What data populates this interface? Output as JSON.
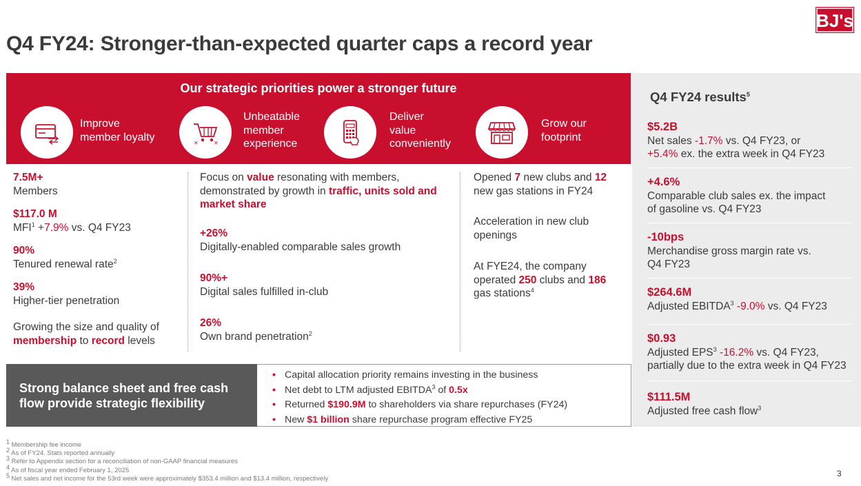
{
  "brand": {
    "logo_text": "BJ's",
    "accent": "#c8102e",
    "dark_panel": "#595959",
    "side_panel": "#ececec"
  },
  "title": "Q4 FY24: Stronger-than-expected quarter caps a record year",
  "banner": {
    "title": "Our strategic priorities power a stronger future",
    "priorities": [
      {
        "icon": "membership-card-icon",
        "line1": "Improve",
        "line2": "member loyalty",
        "line3": ""
      },
      {
        "icon": "shopping-cart-icon",
        "line1": "Unbeatable",
        "line2": "member",
        "line3": "experience"
      },
      {
        "icon": "mobile-app-icon",
        "line1": "Deliver",
        "line2": "value",
        "line3": "conveniently"
      },
      {
        "icon": "storefront-icon",
        "line1": "Grow our",
        "line2": "footprint",
        "line3": ""
      }
    ]
  },
  "col1": {
    "members_value": "7.5M+",
    "members_label": "Members",
    "mfi_value": "$117.0 M",
    "mfi_label": "MFI",
    "mfi_sup": "1",
    "mfi_change": "+7.9%",
    "mfi_suffix": " vs. Q4 FY23",
    "renewal_value": "90%",
    "renewal_label": "Tenured renewal rate",
    "renewal_sup": "2",
    "higher_tier_value": "39%",
    "higher_tier_label": "Higher-tier penetration",
    "growing_line1": "Growing the size and quality of",
    "growing_kw1": "membership",
    "growing_mid": " to ",
    "growing_kw2": "record",
    "growing_end": " levels"
  },
  "col2": {
    "focus_l1_pre": "Focus on ",
    "focus_l1_kw": "value",
    "focus_l1_post": " resonating with members,",
    "focus_l2_pre": "demonstrated by growth in ",
    "focus_l2_kw": "traffic, units sold and",
    "focus_l3_kw": "market share",
    "digital_value": "+26%",
    "digital_label": "Digitally-enabled comparable sales growth",
    "fulfilled_value": "90%+",
    "fulfilled_label": "Digital sales fulfilled in-club",
    "own_brand_value": "26%",
    "own_brand_label": "Own brand penetration",
    "own_brand_sup": "2"
  },
  "col3": {
    "opened_pre": "Opened ",
    "opened_clubs": "7",
    "opened_mid": " new clubs and ",
    "opened_gas": "12",
    "opened_l2": "new gas stations in FY24",
    "accel_l1": "Acceleration in new club",
    "accel_l2": "openings",
    "fye_l1": "At FYE24, the company",
    "fye_l2_pre": "operated ",
    "fye_clubs": "250",
    "fye_l2_mid": " clubs and ",
    "fye_gas": "186",
    "fye_l3": "gas stations",
    "fye_sup": "4"
  },
  "results": {
    "title": "Q4 FY24 results",
    "title_sup": "5",
    "net_sales_value": "$5.2B",
    "net_sales_l1_pre": "Net sales ",
    "net_sales_change": "-1.7%",
    "net_sales_l1_post": " vs. Q4 FY23, or",
    "net_sales_change2": "+5.4%",
    "net_sales_l2_post": " ex. the extra week in Q4 FY23",
    "comp_value": "+4.6%",
    "comp_l1": "Comparable club sales ex. the impact",
    "comp_l2": "of gasoline vs. Q4 FY23",
    "margin_value": "-10bps",
    "margin_l1": "Merchandise gross margin rate vs.",
    "margin_l2": "Q4 FY23",
    "ebitda_value": "$264.6M",
    "ebitda_label": "Adjusted EBITDA",
    "ebitda_sup": "3",
    "ebitda_change": "-9.0%",
    "ebitda_suffix": " vs. Q4 FY23",
    "eps_value": "$0.93",
    "eps_label": "Adjusted EPS",
    "eps_sup": "3",
    "eps_change": "-16.2%",
    "eps_suffix": " vs. Q4 FY23,",
    "eps_l2": "partially due to the extra week in Q4 FY23",
    "fcf_value": "$111.5M",
    "fcf_label": "Adjusted free cash flow",
    "fcf_sup": "3"
  },
  "balance": {
    "heading_l1": "Strong balance sheet and free cash",
    "heading_l2": "flow provide strategic flexibility",
    "b1": "Capital allocation priority remains investing in the business",
    "b2_pre": "Net debt to LTM adjusted EBITDA",
    "b2_sup": "3",
    "b2_mid": " of ",
    "b2_kw": "0.5x",
    "b3_pre": "Returned ",
    "b3_kw": "$190.9M",
    "b3_post": " to shareholders via share repurchases (FY24)",
    "b4_pre": "New ",
    "b4_kw": "$1 billion",
    "b4_post": " share repurchase program effective FY25"
  },
  "footnotes": [
    {
      "num": "1",
      "text": "Membership fee income"
    },
    {
      "num": "2",
      "text": "As of FY24. Stats reported annually"
    },
    {
      "num": "3",
      "text": "Refer to Appendix section for a reconciliation of non-GAAP financial measures"
    },
    {
      "num": "4",
      "text": "As of fiscal year ended February 1, 2025"
    },
    {
      "num": "5",
      "text": "Net sales and net income for the 53rd week were approximately $353.4 million and $13.4 million, respectively"
    }
  ],
  "page_number": "3"
}
